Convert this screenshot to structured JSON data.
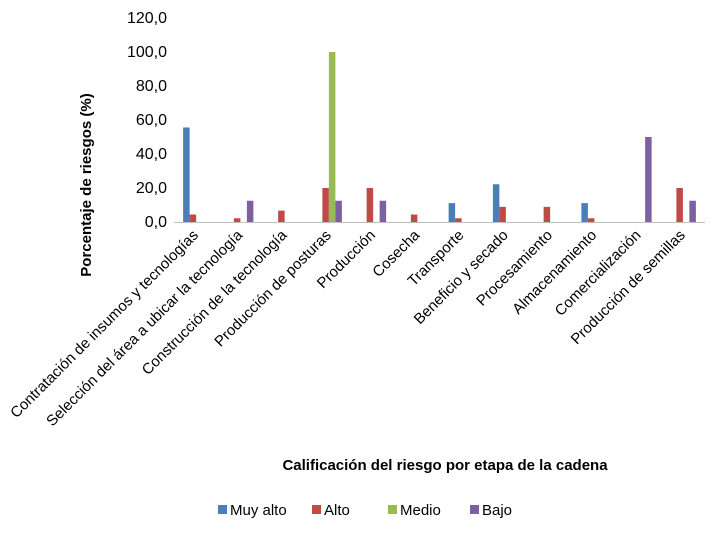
{
  "chart_data": {
    "type": "bar",
    "xlabel": "Calificación del riesgo por etapa de la cadena",
    "ylabel": "Porcentaje de riesgos (%)",
    "ylim": [
      0,
      120
    ],
    "yticks": [
      "0,0",
      "20,0",
      "40,0",
      "60,0",
      "80,0",
      "100,0",
      "120,0"
    ],
    "grid": false,
    "legend_position": "bottom",
    "categories": [
      "Contratación de insumos y tecnologías",
      "Selección del área a ubicar la tecnología",
      "Construcción de la tecnología",
      "Producción de posturas",
      "Producción",
      "Cosecha",
      "Transporte",
      "Beneficio y secado",
      "Procesamiento",
      "Almacenamiento",
      "Comercialización",
      "Producción de semillas"
    ],
    "series": [
      {
        "name": "Muy alto",
        "color": "#4a7ebb",
        "values": [
          55.6,
          0,
          0,
          0,
          0,
          0,
          11.1,
          22.2,
          0,
          11.1,
          0,
          0
        ]
      },
      {
        "name": "Alto",
        "color": "#be4b48",
        "values": [
          4.4,
          2.2,
          6.7,
          20.0,
          20.0,
          4.4,
          2.2,
          8.9,
          8.9,
          2.2,
          0,
          20.0
        ]
      },
      {
        "name": "Medio",
        "color": "#98b954",
        "values": [
          0,
          0,
          0,
          100.0,
          0,
          0,
          0,
          0,
          0,
          0,
          0,
          0
        ]
      },
      {
        "name": "Bajo",
        "color": "#7d60a0",
        "values": [
          0,
          12.5,
          0,
          12.5,
          12.5,
          0,
          0,
          0,
          0,
          0,
          50.0,
          12.5
        ]
      }
    ]
  }
}
